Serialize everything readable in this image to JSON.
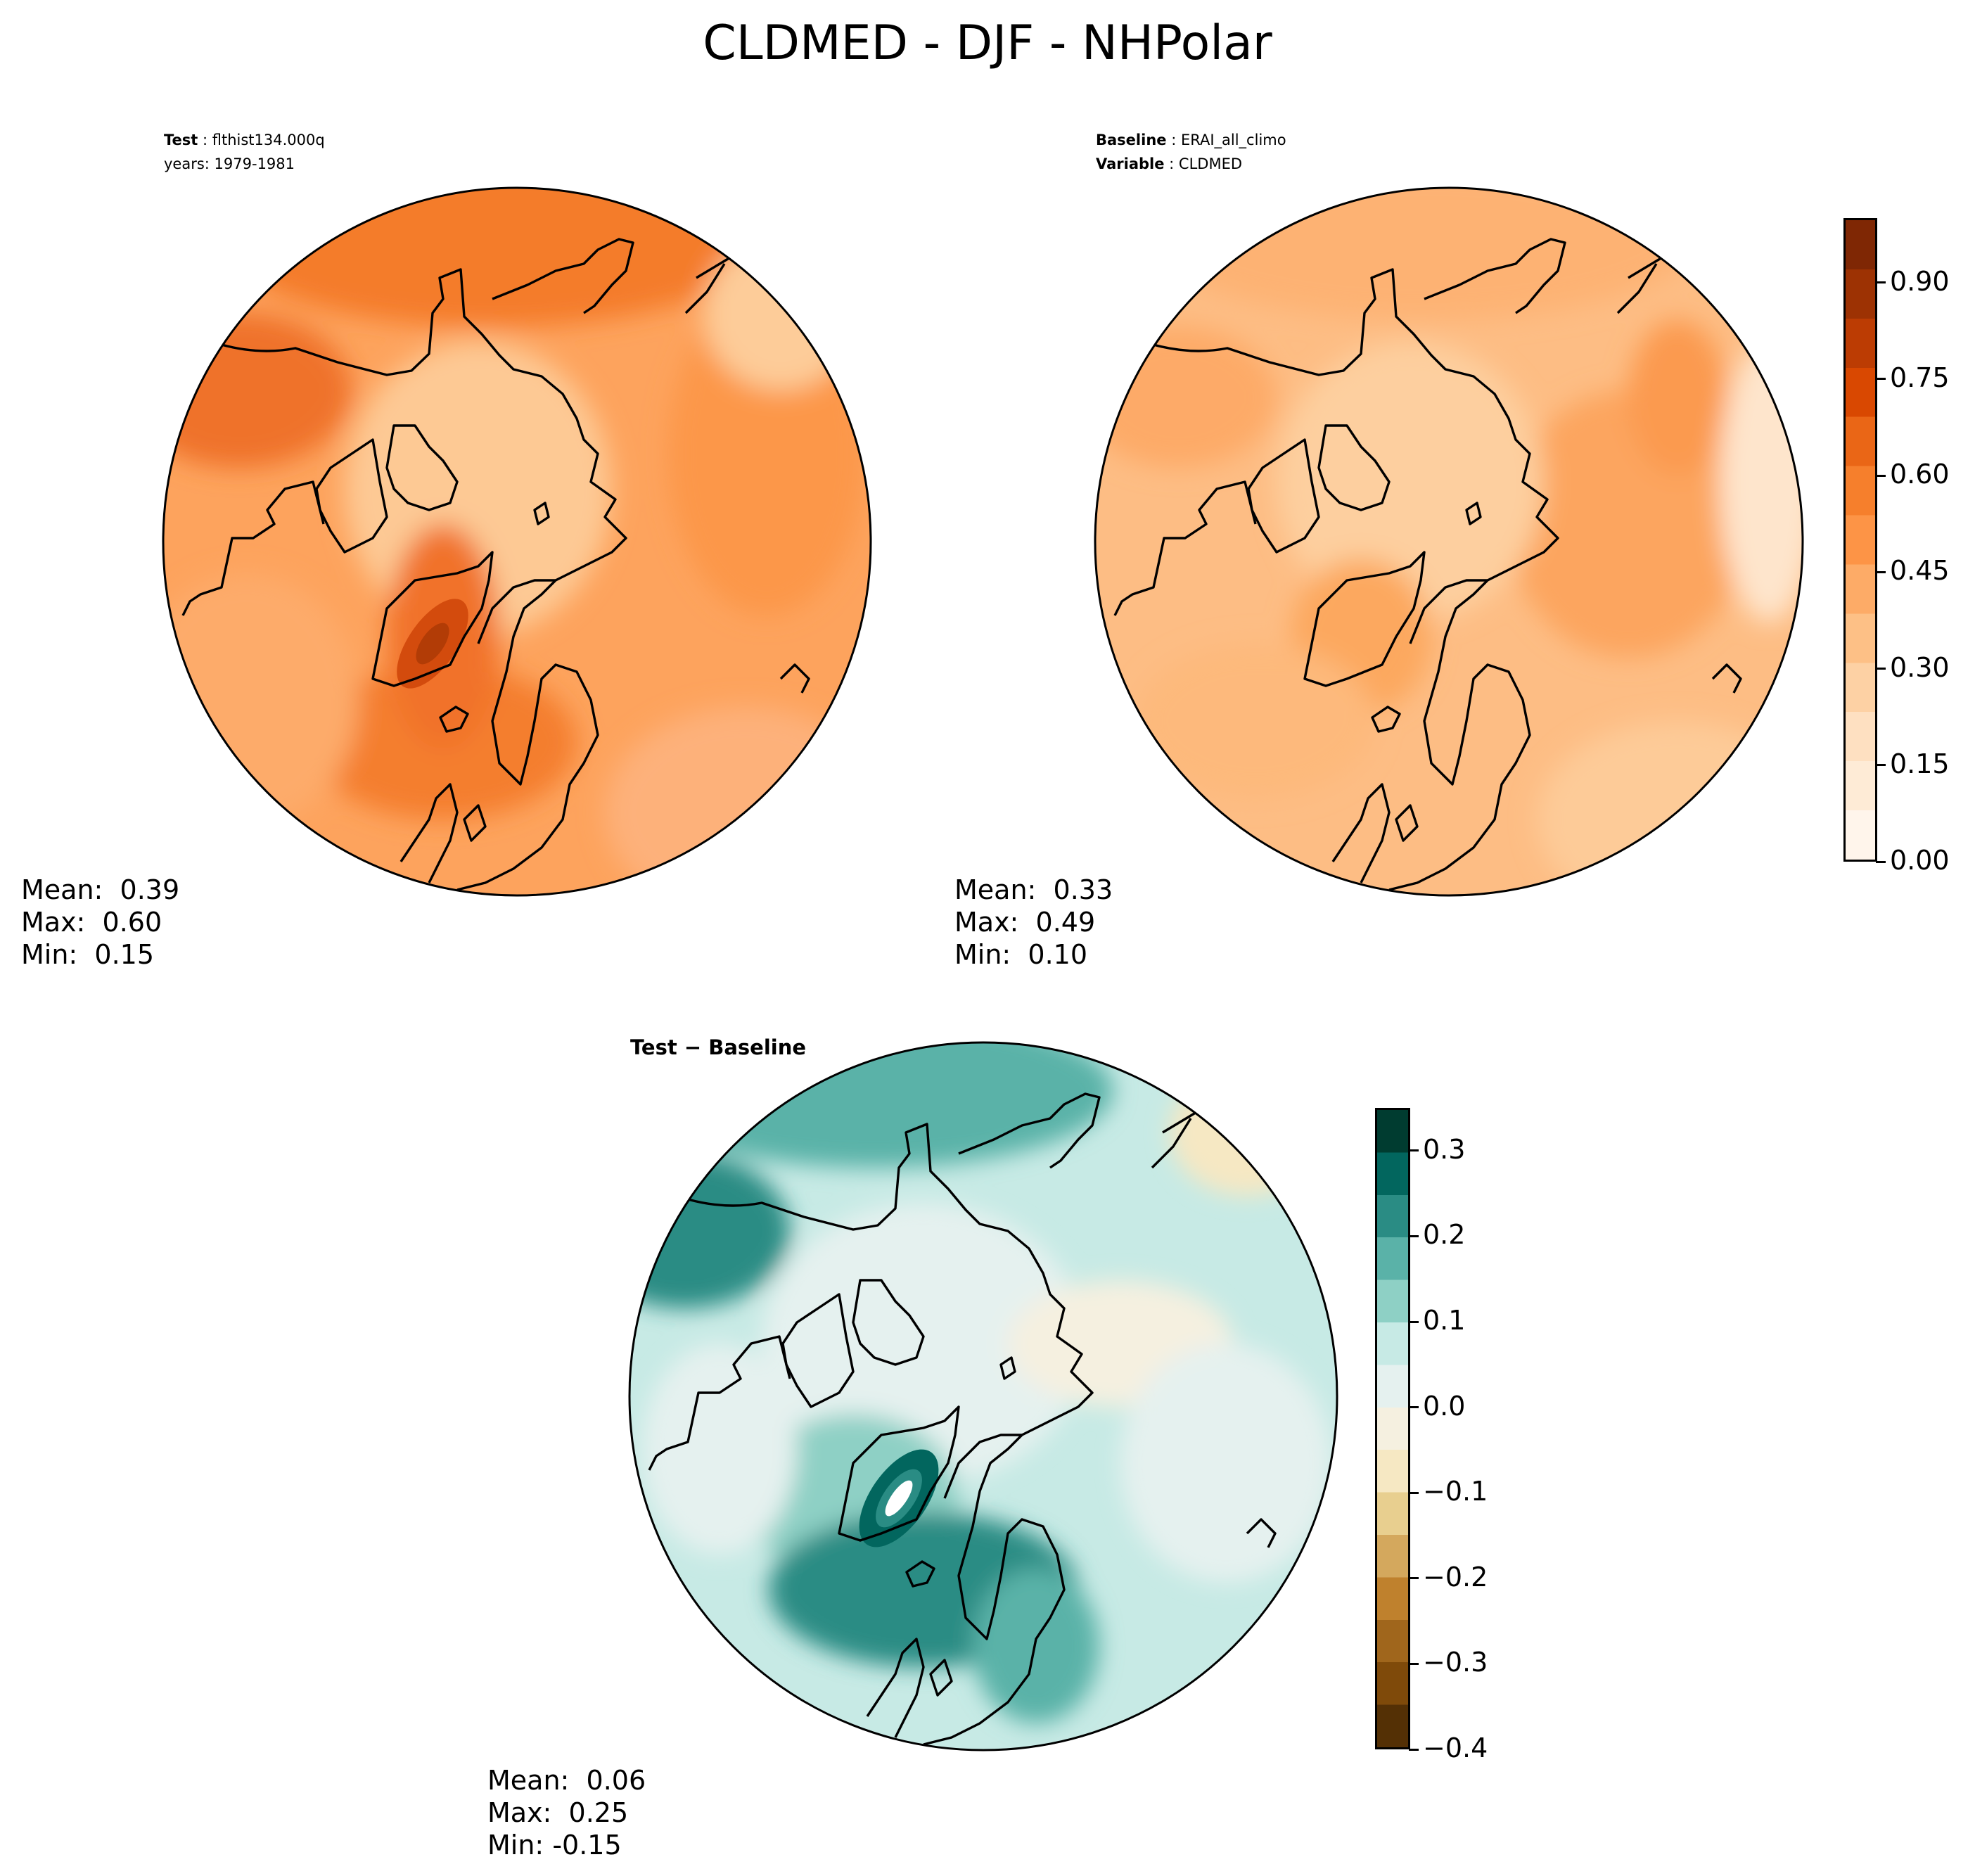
{
  "title": "CLDMED - DJF - NHPolar",
  "panels": {
    "test": {
      "label_key": "Test",
      "label_value": "flthist134.000q",
      "line2_text": "years: 1979-1981",
      "stats": {
        "mean_label": "Mean:",
        "mean": "0.39",
        "max_label": "Max:",
        "max": "0.60",
        "min_label": "Min:",
        "min": "0.15"
      }
    },
    "baseline": {
      "label_key": "Baseline",
      "label_value": "ERAI_all_climo",
      "line2_key": "Variable",
      "line2_value": "CLDMED",
      "stats": {
        "mean_label": "Mean:",
        "mean": "0.33",
        "max_label": "Max:",
        "max": "0.49",
        "min_label": "Min:",
        "min": "0.10"
      }
    },
    "diff": {
      "label": "Test − Baseline",
      "stats": {
        "mean_label": "Mean:",
        "mean": "0.06",
        "max_label": "Max:",
        "max": "0.25",
        "min_label": "Min:",
        "min": "-0.15"
      }
    }
  },
  "colorbars": {
    "main": {
      "ticks": [
        "0.00",
        "0.15",
        "0.30",
        "0.45",
        "0.60",
        "0.75",
        "0.90"
      ],
      "range": [
        0.0,
        1.0
      ],
      "colors": [
        "#fff5eb",
        "#feebd6",
        "#fee0c1",
        "#fdd1a4",
        "#fdc086",
        "#fdab67",
        "#fd9446",
        "#f67f2c",
        "#ea6616",
        "#d94801",
        "#bc3c03",
        "#9d3203",
        "#7f2704"
      ]
    },
    "diff": {
      "ticks": [
        "0.3",
        "0.2",
        "0.1",
        "0.0",
        "−0.1",
        "−0.2",
        "−0.3",
        "−0.4"
      ],
      "range": [
        -0.4,
        0.35
      ],
      "colors": [
        "#543005",
        "#7f4a0a",
        "#a0661c",
        "#bf812d",
        "#d4a85d",
        "#e8cf8f",
        "#f6e8c3",
        "#f5f0e0",
        "#e5f1ef",
        "#c7eae5",
        "#8ed0c5",
        "#5ab2a8",
        "#2a8c84",
        "#02665e",
        "#003c30"
      ]
    }
  },
  "icons": [
    "polar-stereographic-map",
    "coastlines"
  ]
}
